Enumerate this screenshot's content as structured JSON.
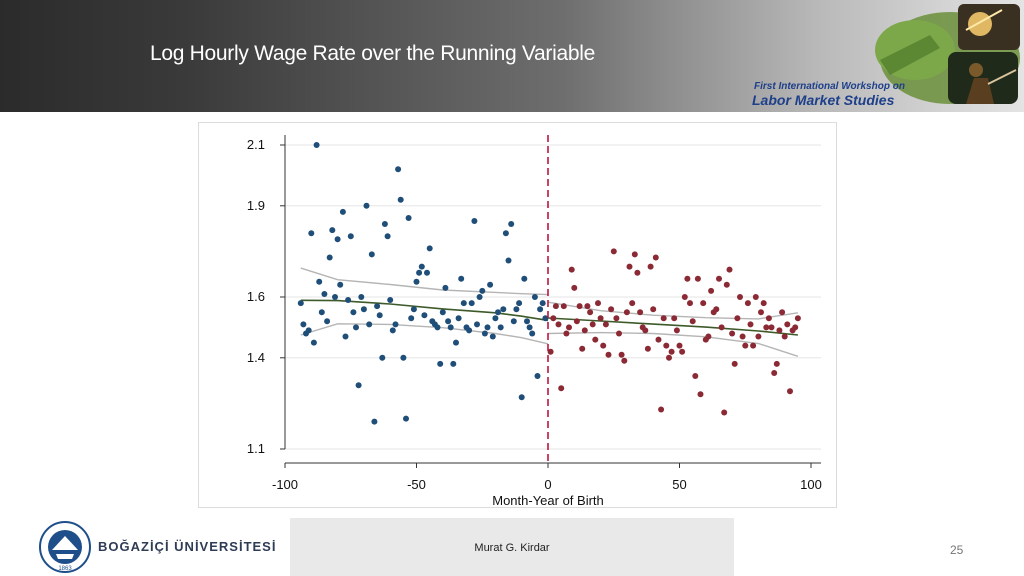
{
  "slide": {
    "title": "Log Hourly Wage Rate over the Running Variable",
    "workshop_line1": "First International Workshop on",
    "workshop_line2": "Labor Market Studies",
    "university_name": "BOĞAZİÇİ ÜNİVERSİTESİ",
    "seal_year": "1863",
    "footer_author": "Murat G. Kirdar",
    "page_number": "25"
  },
  "chart_data": {
    "type": "scatter",
    "xlabel": "Month-Year of Birth",
    "ylabel": "",
    "xlim": [
      -100,
      100
    ],
    "ylim": [
      1.1,
      2.1
    ],
    "x_ticks": [
      -100,
      -50,
      0,
      50,
      100
    ],
    "y_ticks": [
      1.1,
      1.4,
      1.6,
      1.9,
      2.1
    ],
    "y_tick_labels": [
      "1.1",
      "1.4",
      "1.6",
      "1.9",
      "2.1"
    ],
    "grid": true,
    "cutoff": 0,
    "colors": {
      "left_points": "#1f4e79",
      "right_points": "#8b2a35",
      "fit": "#3d5a2a",
      "ci": "#b5b5b5",
      "cutoff": "#c0143c"
    },
    "series": [
      {
        "side": "left",
        "points": [
          [
            -94,
            1.58
          ],
          [
            -93,
            1.51
          ],
          [
            -92,
            1.48
          ],
          [
            -91,
            1.49
          ],
          [
            -90,
            1.81
          ],
          [
            -89,
            1.45
          ],
          [
            -88,
            2.1
          ],
          [
            -87,
            1.65
          ],
          [
            -86,
            1.55
          ],
          [
            -85,
            1.61
          ],
          [
            -84,
            1.52
          ],
          [
            -83,
            1.73
          ],
          [
            -82,
            1.82
          ],
          [
            -81,
            1.6
          ],
          [
            -80,
            1.79
          ],
          [
            -79,
            1.64
          ],
          [
            -78,
            1.88
          ],
          [
            -77,
            1.47
          ],
          [
            -76,
            1.59
          ],
          [
            -75,
            1.8
          ],
          [
            -74,
            1.55
          ],
          [
            -73,
            1.5
          ],
          [
            -72,
            1.31
          ],
          [
            -71,
            1.6
          ],
          [
            -70,
            1.56
          ],
          [
            -69,
            1.9
          ],
          [
            -68,
            1.51
          ],
          [
            -67,
            1.74
          ],
          [
            -66,
            1.19
          ],
          [
            -65,
            1.57
          ],
          [
            -64,
            1.54
          ],
          [
            -63,
            1.4
          ],
          [
            -62,
            1.84
          ],
          [
            -61,
            1.8
          ],
          [
            -60,
            1.59
          ],
          [
            -59,
            1.49
          ],
          [
            -58,
            1.51
          ],
          [
            -57,
            2.02
          ],
          [
            -56,
            1.92
          ],
          [
            -55,
            1.4
          ],
          [
            -54,
            1.2
          ],
          [
            -53,
            1.86
          ],
          [
            -52,
            1.53
          ],
          [
            -51,
            1.56
          ],
          [
            -50,
            1.65
          ],
          [
            -49,
            1.68
          ],
          [
            -48,
            1.7
          ],
          [
            -47,
            1.54
          ],
          [
            -46,
            1.68
          ],
          [
            -45,
            1.76
          ],
          [
            -44,
            1.52
          ],
          [
            -43,
            1.51
          ],
          [
            -42,
            1.5
          ],
          [
            -41,
            1.38
          ],
          [
            -40,
            1.55
          ],
          [
            -39,
            1.63
          ],
          [
            -38,
            1.52
          ],
          [
            -37,
            1.5
          ],
          [
            -36,
            1.38
          ],
          [
            -35,
            1.45
          ],
          [
            -34,
            1.53
          ],
          [
            -33,
            1.66
          ],
          [
            -32,
            1.58
          ],
          [
            -31,
            1.5
          ],
          [
            -30,
            1.49
          ],
          [
            -29,
            1.58
          ],
          [
            -28,
            1.85
          ],
          [
            -27,
            1.51
          ],
          [
            -26,
            1.6
          ],
          [
            -25,
            1.62
          ],
          [
            -24,
            1.48
          ],
          [
            -23,
            1.5
          ],
          [
            -22,
            1.64
          ],
          [
            -21,
            1.47
          ],
          [
            -20,
            1.53
          ],
          [
            -19,
            1.55
          ],
          [
            -18,
            1.5
          ],
          [
            -17,
            1.56
          ],
          [
            -16,
            1.81
          ],
          [
            -15,
            1.72
          ],
          [
            -14,
            1.84
          ],
          [
            -13,
            1.52
          ],
          [
            -12,
            1.56
          ],
          [
            -11,
            1.58
          ],
          [
            -10,
            1.27
          ],
          [
            -9,
            1.66
          ],
          [
            -8,
            1.52
          ],
          [
            -7,
            1.5
          ],
          [
            -6,
            1.48
          ],
          [
            -5,
            1.6
          ],
          [
            -4,
            1.34
          ],
          [
            -3,
            1.56
          ],
          [
            -2,
            1.58
          ],
          [
            -1,
            1.53
          ]
        ]
      },
      {
        "side": "right",
        "points": [
          [
            1,
            1.42
          ],
          [
            2,
            1.53
          ],
          [
            3,
            1.57
          ],
          [
            4,
            1.51
          ],
          [
            5,
            1.3
          ],
          [
            6,
            1.57
          ],
          [
            7,
            1.48
          ],
          [
            8,
            1.5
          ],
          [
            9,
            1.69
          ],
          [
            10,
            1.63
          ],
          [
            11,
            1.52
          ],
          [
            12,
            1.57
          ],
          [
            13,
            1.43
          ],
          [
            14,
            1.49
          ],
          [
            15,
            1.57
          ],
          [
            16,
            1.55
          ],
          [
            17,
            1.51
          ],
          [
            18,
            1.46
          ],
          [
            19,
            1.58
          ],
          [
            20,
            1.53
          ],
          [
            21,
            1.44
          ],
          [
            22,
            1.51
          ],
          [
            23,
            1.41
          ],
          [
            24,
            1.56
          ],
          [
            25,
            1.75
          ],
          [
            26,
            1.53
          ],
          [
            27,
            1.48
          ],
          [
            28,
            1.41
          ],
          [
            29,
            1.39
          ],
          [
            30,
            1.55
          ],
          [
            31,
            1.7
          ],
          [
            32,
            1.58
          ],
          [
            33,
            1.74
          ],
          [
            34,
            1.68
          ],
          [
            35,
            1.55
          ],
          [
            36,
            1.5
          ],
          [
            37,
            1.49
          ],
          [
            38,
            1.43
          ],
          [
            39,
            1.7
          ],
          [
            40,
            1.56
          ],
          [
            41,
            1.73
          ],
          [
            42,
            1.46
          ],
          [
            43,
            1.23
          ],
          [
            44,
            1.53
          ],
          [
            45,
            1.44
          ],
          [
            46,
            1.4
          ],
          [
            47,
            1.42
          ],
          [
            48,
            1.53
          ],
          [
            49,
            1.49
          ],
          [
            50,
            1.44
          ],
          [
            51,
            1.42
          ],
          [
            52,
            1.6
          ],
          [
            53,
            1.66
          ],
          [
            54,
            1.58
          ],
          [
            55,
            1.52
          ],
          [
            56,
            1.34
          ],
          [
            57,
            1.66
          ],
          [
            58,
            1.28
          ],
          [
            59,
            1.58
          ],
          [
            60,
            1.46
          ],
          [
            61,
            1.47
          ],
          [
            62,
            1.62
          ],
          [
            63,
            1.55
          ],
          [
            64,
            1.56
          ],
          [
            65,
            1.66
          ],
          [
            66,
            1.5
          ],
          [
            67,
            1.22
          ],
          [
            68,
            1.64
          ],
          [
            69,
            1.69
          ],
          [
            70,
            1.48
          ],
          [
            71,
            1.38
          ],
          [
            72,
            1.53
          ],
          [
            73,
            1.6
          ],
          [
            74,
            1.47
          ],
          [
            75,
            1.44
          ],
          [
            76,
            1.58
          ],
          [
            77,
            1.51
          ],
          [
            78,
            1.44
          ],
          [
            79,
            1.6
          ],
          [
            80,
            1.47
          ],
          [
            81,
            1.55
          ],
          [
            82,
            1.58
          ],
          [
            83,
            1.5
          ],
          [
            84,
            1.53
          ],
          [
            85,
            1.5
          ],
          [
            86,
            1.35
          ],
          [
            87,
            1.38
          ],
          [
            88,
            1.49
          ],
          [
            89,
            1.55
          ],
          [
            90,
            1.47
          ],
          [
            91,
            1.51
          ],
          [
            92,
            1.29
          ],
          [
            93,
            1.49
          ],
          [
            94,
            1.5
          ],
          [
            95,
            1.53
          ]
        ]
      }
    ],
    "fit_left": [
      [
        -94,
        1.589
      ],
      [
        -80,
        1.588
      ],
      [
        -60,
        1.577
      ],
      [
        -40,
        1.561
      ],
      [
        -20,
        1.548
      ],
      [
        -10,
        1.537
      ],
      [
        0,
        1.523
      ]
    ],
    "fit_right": [
      [
        0,
        1.531
      ],
      [
        20,
        1.521
      ],
      [
        40,
        1.511
      ],
      [
        60,
        1.501
      ],
      [
        80,
        1.488
      ],
      [
        95,
        1.475
      ]
    ],
    "ci_left_upper": [
      [
        -94,
        1.695
      ],
      [
        -80,
        1.657
      ],
      [
        -60,
        1.641
      ],
      [
        -40,
        1.623
      ],
      [
        -20,
        1.615
      ],
      [
        -10,
        1.611
      ],
      [
        0,
        1.608
      ]
    ],
    "ci_left_lower": [
      [
        -94,
        1.475
      ],
      [
        -80,
        1.512
      ],
      [
        -60,
        1.51
      ],
      [
        -40,
        1.499
      ],
      [
        -20,
        1.48
      ],
      [
        -10,
        1.466
      ],
      [
        0,
        1.446
      ]
    ],
    "ci_right_upper": [
      [
        0,
        1.583
      ],
      [
        20,
        1.555
      ],
      [
        40,
        1.54
      ],
      [
        60,
        1.532
      ],
      [
        80,
        1.528
      ],
      [
        95,
        1.548
      ]
    ],
    "ci_right_lower": [
      [
        0,
        1.48
      ],
      [
        20,
        1.483
      ],
      [
        40,
        1.48
      ],
      [
        60,
        1.469
      ],
      [
        80,
        1.447
      ],
      [
        95,
        1.405
      ]
    ]
  }
}
